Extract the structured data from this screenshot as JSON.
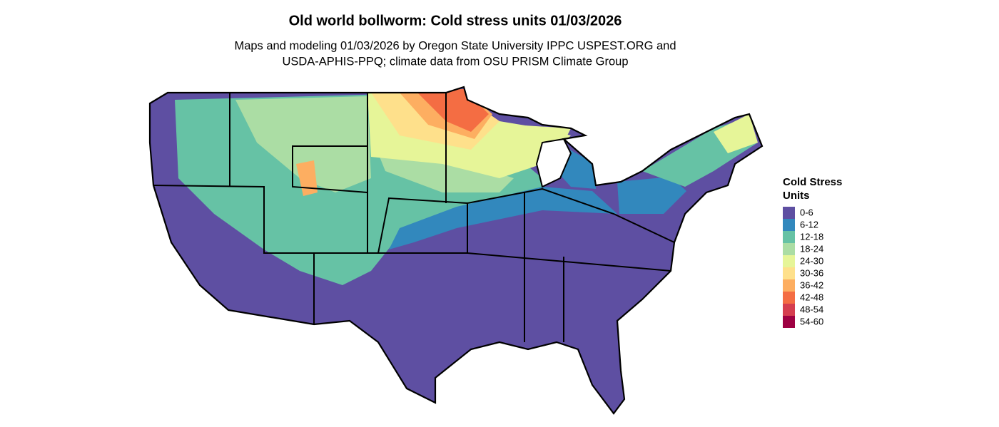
{
  "title": "Old world bollworm: Cold stress units 01/03/2026",
  "subtitle": [
    "Maps and modeling 01/03/2026 by Oregon State University IPPC USPEST.ORG and",
    "USDA-APHIS-PPQ; climate data from OSU PRISM Climate Group"
  ],
  "legend": {
    "title": [
      "Cold Stress",
      "Units"
    ],
    "items": [
      {
        "label": "0-6",
        "color": "#5e4fa2"
      },
      {
        "label": "6-12",
        "color": "#3288bd"
      },
      {
        "label": "12-18",
        "color": "#66c2a5"
      },
      {
        "label": "18-24",
        "color": "#abdda4"
      },
      {
        "label": "24-30",
        "color": "#e6f598"
      },
      {
        "label": "30-36",
        "color": "#fee08b"
      },
      {
        "label": "36-42",
        "color": "#fdae61"
      },
      {
        "label": "42-48",
        "color": "#f46d43"
      },
      {
        "label": "48-54",
        "color": "#d53e4f"
      },
      {
        "label": "54-60",
        "color": "#9e0142"
      }
    ]
  }
}
